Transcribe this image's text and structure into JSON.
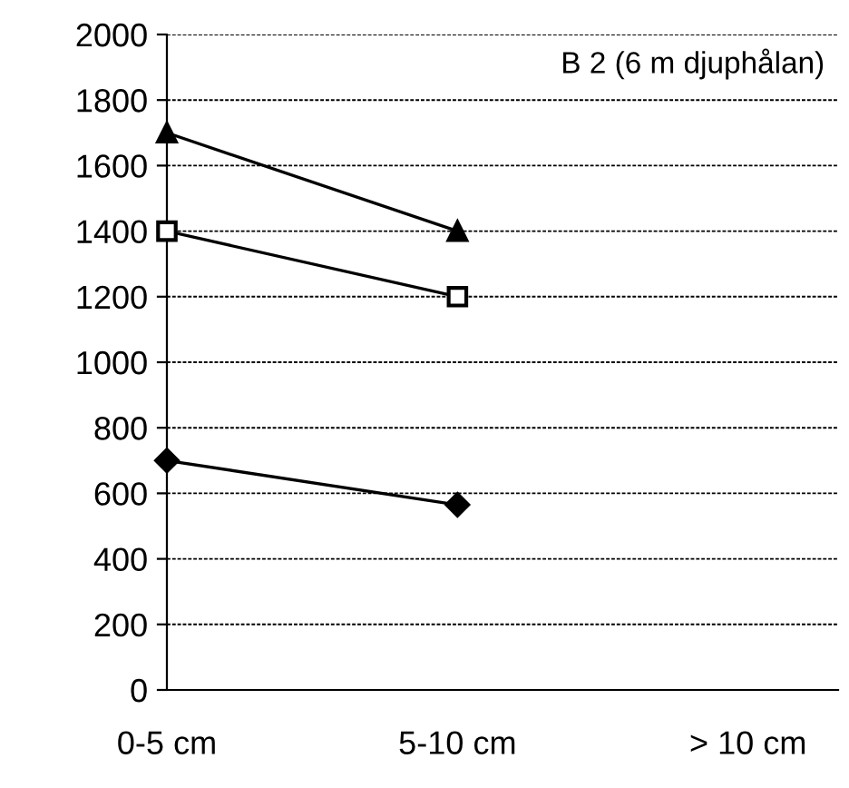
{
  "chart_data": {
    "type": "line",
    "title": "B 2 (6 m djuphålan)",
    "categories": [
      "0-5 cm",
      "5-10 cm",
      "> 10 cm"
    ],
    "series": [
      {
        "color": "#000000",
        "marker": "triangle",
        "values": [
          1700,
          1400,
          null
        ]
      },
      {
        "color": "#000000",
        "marker": "square",
        "values": [
          1400,
          1200,
          null
        ]
      },
      {
        "color": "#000000",
        "marker": "diamond",
        "values": [
          700,
          565,
          null
        ]
      }
    ],
    "ylim": [
      0,
      2000
    ],
    "yticks": [
      0,
      200,
      400,
      600,
      800,
      1000,
      1200,
      1400,
      1600,
      1800,
      2000
    ],
    "grid": "y",
    "legend": false
  }
}
